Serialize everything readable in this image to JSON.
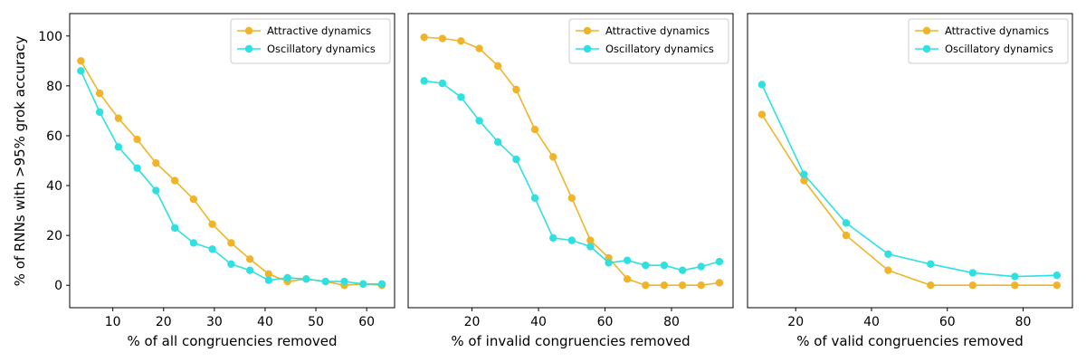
{
  "figure": {
    "ylabel": "% of RNNs with >95% grok accuracy"
  },
  "legend": {
    "series": [
      "Attractive dynamics",
      "Oscillatory dynamics"
    ],
    "colors": [
      "#F0B429",
      "#2EE0E0"
    ]
  },
  "chart_data": [
    {
      "type": "line",
      "xlabel": "% of all congruencies removed",
      "ylabel": "% of RNNs with >95% grok accuracy",
      "xlim": [
        1.5,
        65.5
      ],
      "ylim": [
        -9,
        109
      ],
      "xticks": [
        10,
        20,
        30,
        40,
        50,
        60
      ],
      "yticks": [
        0,
        20,
        40,
        60,
        80,
        100
      ],
      "legend_position": "upper right",
      "grid": false,
      "series": [
        {
          "name": "Attractive dynamics",
          "color": "#F0B429",
          "x": [
            3.7,
            7.4,
            11.1,
            14.8,
            18.5,
            22.2,
            25.9,
            29.6,
            33.3,
            37.0,
            40.7,
            44.4,
            48.1,
            51.9,
            55.6,
            59.3,
            63.0
          ],
          "y": [
            90,
            77,
            67,
            58.5,
            49,
            42,
            34.5,
            24.5,
            17,
            10.5,
            4.5,
            1.5,
            2.5,
            1.5,
            0,
            0.5,
            0
          ]
        },
        {
          "name": "Oscillatory dynamics",
          "color": "#2EE0E0",
          "x": [
            3.7,
            7.4,
            11.1,
            14.8,
            18.5,
            22.2,
            25.9,
            29.6,
            33.3,
            37.0,
            40.7,
            44.4,
            48.1,
            51.9,
            55.6,
            59.3,
            63.0
          ],
          "y": [
            86,
            69.5,
            55.5,
            47,
            38,
            23,
            17,
            14.5,
            8.5,
            6,
            2,
            3,
            2.5,
            1.5,
            1.5,
            0.5,
            0.5
          ]
        }
      ]
    },
    {
      "type": "line",
      "xlabel": "% of invalid congruencies removed",
      "ylabel": "",
      "xlim": [
        0.8,
        98.5
      ],
      "ylim": [
        -9,
        109
      ],
      "xticks": [
        20,
        40,
        60,
        80
      ],
      "yticks": [],
      "legend_position": "upper right",
      "grid": false,
      "series": [
        {
          "name": "Attractive dynamics",
          "color": "#F0B429",
          "x": [
            5.6,
            11.1,
            16.7,
            22.2,
            27.8,
            33.3,
            38.9,
            44.4,
            50.0,
            55.6,
            61.1,
            66.7,
            72.2,
            77.8,
            83.3,
            88.9,
            94.4
          ],
          "y": [
            99.5,
            99,
            98,
            95,
            88,
            78.5,
            62.5,
            51.5,
            35,
            18,
            11,
            2.5,
            0,
            0,
            0,
            0,
            1
          ]
        },
        {
          "name": "Oscillatory dynamics",
          "color": "#2EE0E0",
          "x": [
            5.6,
            11.1,
            16.7,
            22.2,
            27.8,
            33.3,
            38.9,
            44.4,
            50.0,
            55.6,
            61.1,
            66.7,
            72.2,
            77.8,
            83.3,
            88.9,
            94.4
          ],
          "y": [
            82,
            81,
            75.5,
            66,
            57.5,
            50.5,
            35,
            19,
            18,
            15.5,
            9,
            10,
            8,
            8,
            6,
            7.5,
            9.5
          ]
        }
      ]
    },
    {
      "type": "line",
      "xlabel": "% of valid congruencies removed",
      "ylabel": "",
      "xlim": [
        7.3,
        93.0
      ],
      "ylim": [
        -9,
        109
      ],
      "xticks": [
        20,
        40,
        60,
        80
      ],
      "yticks": [],
      "legend_position": "upper right",
      "grid": false,
      "series": [
        {
          "name": "Attractive dynamics",
          "color": "#F0B429",
          "x": [
            11.1,
            22.2,
            33.3,
            44.4,
            55.6,
            66.7,
            77.8,
            88.9
          ],
          "y": [
            68.5,
            42,
            20,
            6,
            0,
            0,
            0,
            0
          ]
        },
        {
          "name": "Oscillatory dynamics",
          "color": "#2EE0E0",
          "x": [
            11.1,
            22.2,
            33.3,
            44.4,
            55.6,
            66.7,
            77.8,
            88.9
          ],
          "y": [
            80.5,
            44.5,
            25,
            12.5,
            8.5,
            5,
            3.5,
            4
          ]
        }
      ]
    }
  ]
}
